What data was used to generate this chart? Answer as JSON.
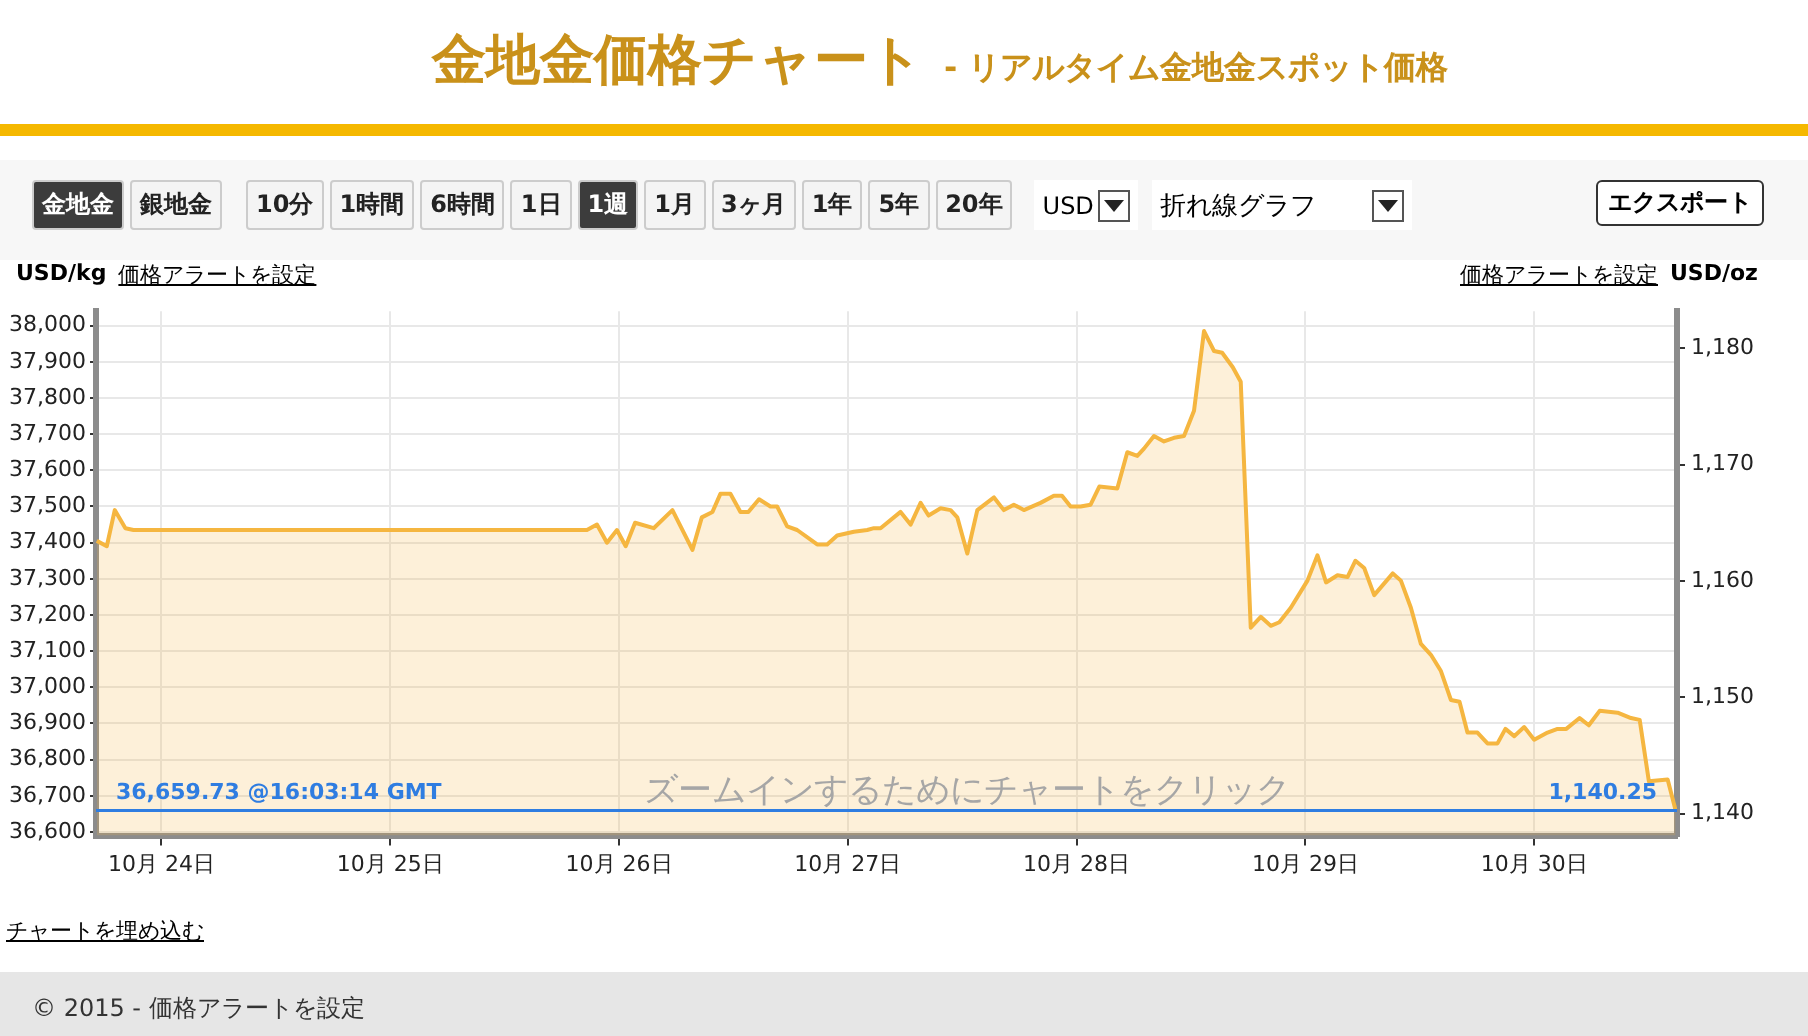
{
  "chart_data": {
    "type": "area",
    "title": "金地金価格チャート",
    "subtitle": "- リアルタイム金地金スポット価格",
    "ylabel": "USD/kg",
    "y2label": "USD/oz",
    "color": "#f5b640",
    "marker": "none",
    "grid": true,
    "x": [
      "--10-23T17:13",
      "--10-23T18:16",
      "--10-23T19:06",
      "--10-23T20:13",
      "--10-23T21:04",
      "--10-25T20:38",
      "--10-25T21:41",
      "--10-25T22:44",
      "--10-25T23:47",
      "--10-26T00:42",
      "--10-26T01:41",
      "--10-26T03:38",
      "--10-26T05:36",
      "--10-26T07:42",
      "--10-26T08:41",
      "--10-26T09:48",
      "--10-26T10:38",
      "--10-26T11:41",
      "--10-26T12:44",
      "--10-26T13:34",
      "--10-26T14:41",
      "--10-26T15:53",
      "--10-26T16:35",
      "--10-26T17:38",
      "--10-26T18:41",
      "--10-26T20:47",
      "--10-26T21:50",
      "--10-26T22:53",
      "--10-27T00:38",
      "--10-27T02:02",
      "--10-27T02:44",
      "--10-27T03:26",
      "--10-27T05:32",
      "--10-27T06:35",
      "--10-27T07:38",
      "--10-27T08:28",
      "--10-27T09:44",
      "--10-27T10:47",
      "--10-27T11:29",
      "--10-27T12:32",
      "--10-27T13:35",
      "--10-27T15:20",
      "--10-27T16:22",
      "--10-27T17:25",
      "--10-27T18:28",
      "--10-27T20:13",
      "--10-27T21:37",
      "--10-27T22:28",
      "--10-27T23:22",
      "--10-28T00:25",
      "--10-28T01:28",
      "--10-28T02:23",
      "--10-28T04:16",
      "--10-28T05:19",
      "--10-28T06:22",
      "--10-28T07:04",
      "--10-28T08:07",
      "--10-28T09:10",
      "--10-28T10:13",
      "--10-28T11:16",
      "--10-28T12:19",
      "--10-28T13:22",
      "--10-28T14:25",
      "--10-28T15:16",
      "--10-28T16:23",
      "--10-28T17:13",
      "--10-28T18:16",
      "--10-28T19:19",
      "--10-28T20:22",
      "--10-28T21:16",
      "--10-28T22:28",
      "--10-29T00:13",
      "--10-29T01:16",
      "--10-29T02:10",
      "--10-29T03:22",
      "--10-29T04:25",
      "--10-29T05:15",
      "--10-29T06:10",
      "--10-29T07:13",
      "--10-29T09:10",
      "--10-29T10:01",
      "--10-29T11:04",
      "--10-29T12:07",
      "--10-29T13:10",
      "--10-29T14:13",
      "--10-29T15:16",
      "--10-29T16:10",
      "--10-29T17:00",
      "--10-29T18:03",
      "--10-29T19:06",
      "--10-29T20:09",
      "--10-29T20:59",
      "--10-29T21:54",
      "--10-29T22:57",
      "--10-30T00:00",
      "--10-30T01:24",
      "--10-30T02:27",
      "--10-30T03:22",
      "--10-30T04:46",
      "--10-30T05:44",
      "--10-30T06:52",
      "--10-30T08:45",
      "--10-30T10:09",
      "--10-30T11:04",
      "--10-30T12:02",
      "--10-30T14:00",
      "--10-30T14:50"
    ],
    "values": [
      37405,
      37390,
      37490,
      37440,
      37435,
      37435,
      37450,
      37400,
      37435,
      37390,
      37455,
      37440,
      37490,
      37380,
      37470,
      37485,
      37535,
      37535,
      37485,
      37485,
      37520,
      37500,
      37500,
      37445,
      37435,
      37395,
      37395,
      37420,
      37430,
      37435,
      37440,
      37440,
      37485,
      37450,
      37510,
      37475,
      37495,
      37490,
      37470,
      37370,
      37490,
      37525,
      37490,
      37505,
      37490,
      37510,
      37530,
      37530,
      37500,
      37500,
      37505,
      37555,
      37550,
      37650,
      37640,
      37660,
      37695,
      37680,
      37690,
      37695,
      37765,
      37985,
      37930,
      37925,
      37885,
      37845,
      37165,
      37195,
      37170,
      37180,
      37220,
      37295,
      37365,
      37290,
      37310,
      37305,
      37350,
      37330,
      37255,
      37315,
      37295,
      37220,
      37120,
      37090,
      37045,
      36965,
      36960,
      36875,
      36875,
      36845,
      36845,
      36885,
      36865,
      36890,
      36855,
      36875,
      36885,
      36885,
      36915,
      36895,
      36935,
      36930,
      36915,
      36910,
      36740,
      36745,
      36660
    ],
    "xlim": [
      "--10-23T17:08",
      "--10-30T14:59"
    ],
    "xticks": [
      {
        "value": "--10-24",
        "label": "10月 24日"
      },
      {
        "value": "--10-25",
        "label": "10月 25日"
      },
      {
        "value": "--10-26",
        "label": "10月 26日"
      },
      {
        "value": "--10-27",
        "label": "10月 27日"
      },
      {
        "value": "--10-28",
        "label": "10月 28日"
      },
      {
        "value": "--10-29",
        "label": "10月 29日"
      },
      {
        "value": "--10-30",
        "label": "10月 30日"
      }
    ],
    "ylim": [
      36590,
      38040
    ],
    "yticks": [
      {
        "value": 36600,
        "label": "36,600"
      },
      {
        "value": 36700,
        "label": "36,700"
      },
      {
        "value": 36800,
        "label": "36,800"
      },
      {
        "value": 36900,
        "label": "36,900"
      },
      {
        "value": 37000,
        "label": "37,000"
      },
      {
        "value": 37100,
        "label": "37,100"
      },
      {
        "value": 37200,
        "label": "37,200"
      },
      {
        "value": 37300,
        "label": "37,300"
      },
      {
        "value": 37400,
        "label": "37,400"
      },
      {
        "value": 37500,
        "label": "37,500"
      },
      {
        "value": 37600,
        "label": "37,600"
      },
      {
        "value": 37700,
        "label": "37,700"
      },
      {
        "value": 37800,
        "label": "37,800"
      },
      {
        "value": 37900,
        "label": "37,900"
      },
      {
        "value": 38000,
        "label": "38,000"
      }
    ],
    "y2lim": [
      1138.1,
      1183.2
    ],
    "y2ticks": [
      {
        "value": 1140,
        "label": "1,140"
      },
      {
        "value": 1150,
        "label": "1,150"
      },
      {
        "value": 1160,
        "label": "1,160"
      },
      {
        "value": 1170,
        "label": "1,170"
      },
      {
        "value": 1180,
        "label": "1,180"
      }
    ],
    "ref_lines": [
      {
        "axis": "y",
        "value": 36659.73,
        "label": "36,659.73 @16:03:14 GMT",
        "color": "#2f7de1"
      }
    ],
    "annotations": [
      "金地金",
      "銀地金",
      "10分",
      "1時間",
      "6時間",
      "1日",
      "1週",
      "1月",
      "3ヶ月",
      "1年",
      "5年",
      "20年",
      "USD",
      "折れ線グラフ",
      "エクスポート",
      "価格アラートを設定",
      "価格アラートを設定",
      "ズームインするためにチャートをクリック",
      "チャートを埋め込む",
      "© 2015 - 価格アラートを設定",
      "1,140.25"
    ]
  }
}
